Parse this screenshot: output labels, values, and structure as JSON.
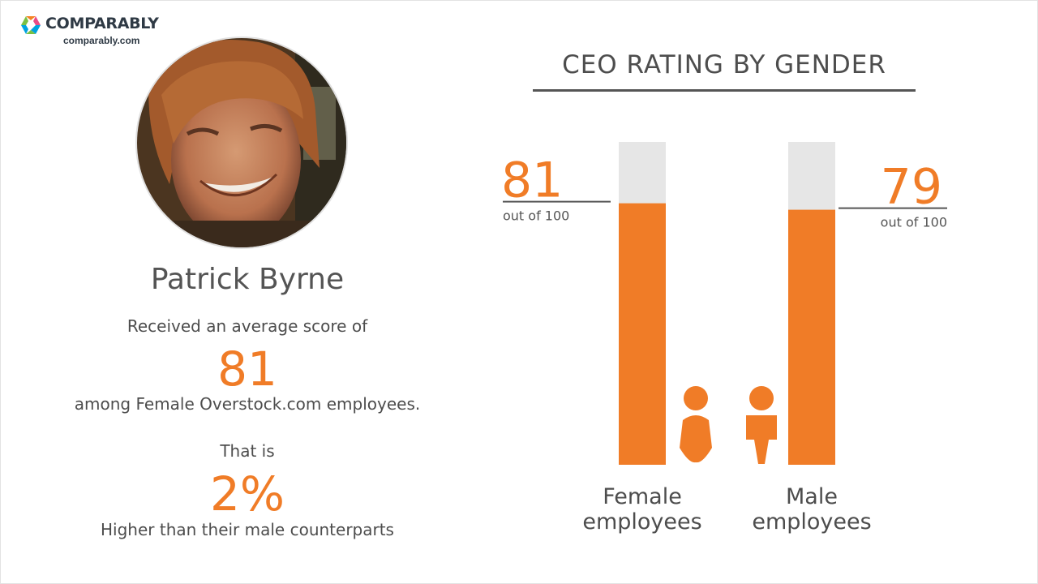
{
  "brand": {
    "name": "COMPARABLY",
    "url": "comparably.com",
    "colors": [
      "#f58220",
      "#e84c88",
      "#7bc043",
      "#00a3e0"
    ]
  },
  "ceo": {
    "name": "Patrick Byrne",
    "lead": "Received an average score of",
    "score": "81",
    "group_text": "among Female Overstock.com employees.",
    "that": "That is",
    "percent": "2%",
    "comparison": "Higher than their male counterparts"
  },
  "chart_data": {
    "type": "bar",
    "title": "CEO RATING BY GENDER",
    "categories": [
      "Female employees",
      "Male employees"
    ],
    "category_lines": [
      [
        "Female",
        "employees"
      ],
      [
        "Male",
        "employees"
      ]
    ],
    "values": [
      81,
      79
    ],
    "value_labels": [
      "81",
      "79"
    ],
    "value_sublabel": "out of 100",
    "ylim": [
      0,
      100
    ],
    "icons": [
      "female-person-icon",
      "male-person-icon"
    ],
    "colors": {
      "bar": "#f07c27",
      "track": "#e6e6e6"
    }
  }
}
